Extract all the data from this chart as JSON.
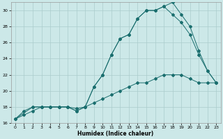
{
  "xlabel": "Humidex (Indice chaleur)",
  "bg_color": "#cce8e8",
  "grid_color": "#aacccc",
  "line_color": "#1a6e6e",
  "xlim": [
    -0.5,
    23.5
  ],
  "ylim": [
    16,
    31
  ],
  "xticks": [
    0,
    1,
    2,
    3,
    4,
    5,
    6,
    7,
    8,
    9,
    10,
    11,
    12,
    13,
    14,
    15,
    16,
    17,
    18,
    19,
    20,
    21,
    22,
    23
  ],
  "yticks": [
    16,
    18,
    20,
    22,
    24,
    26,
    28,
    30
  ],
  "line1_x": [
    0,
    1,
    2,
    3,
    4,
    5,
    6,
    7,
    8,
    9,
    10,
    11,
    12,
    13,
    14,
    15,
    16,
    17,
    18,
    19,
    20,
    21,
    22,
    23
  ],
  "line1_y": [
    16.5,
    17.5,
    18.0,
    18.0,
    18.0,
    18.0,
    18.0,
    17.5,
    18.0,
    20.5,
    22.0,
    24.5,
    26.5,
    27.0,
    29.0,
    30.0,
    30.0,
    30.5,
    31.0,
    29.5,
    28.0,
    25.0,
    22.5,
    21.0
  ],
  "line2_x": [
    0,
    2,
    3,
    4,
    5,
    6,
    7,
    8,
    9,
    10,
    11,
    12,
    13,
    14,
    15,
    16,
    17,
    18,
    19,
    20,
    21,
    22,
    23
  ],
  "line2_y": [
    16.5,
    18.0,
    18.0,
    18.0,
    18.0,
    18.0,
    17.5,
    18.0,
    20.5,
    22.0,
    24.5,
    26.5,
    27.0,
    29.0,
    30.0,
    30.0,
    30.5,
    29.5,
    28.5,
    27.0,
    24.5,
    22.5,
    21.0
  ],
  "line3_x": [
    0,
    1,
    2,
    3,
    4,
    5,
    6,
    7,
    8,
    9,
    10,
    11,
    12,
    13,
    14,
    15,
    16,
    17,
    18,
    19,
    20,
    21,
    22,
    23
  ],
  "line3_y": [
    16.5,
    17.0,
    17.5,
    18.0,
    18.0,
    18.0,
    18.0,
    17.8,
    18.0,
    18.5,
    19.0,
    19.5,
    20.0,
    20.5,
    21.0,
    21.0,
    21.5,
    22.0,
    22.0,
    22.0,
    21.5,
    21.0,
    21.0,
    21.0
  ]
}
